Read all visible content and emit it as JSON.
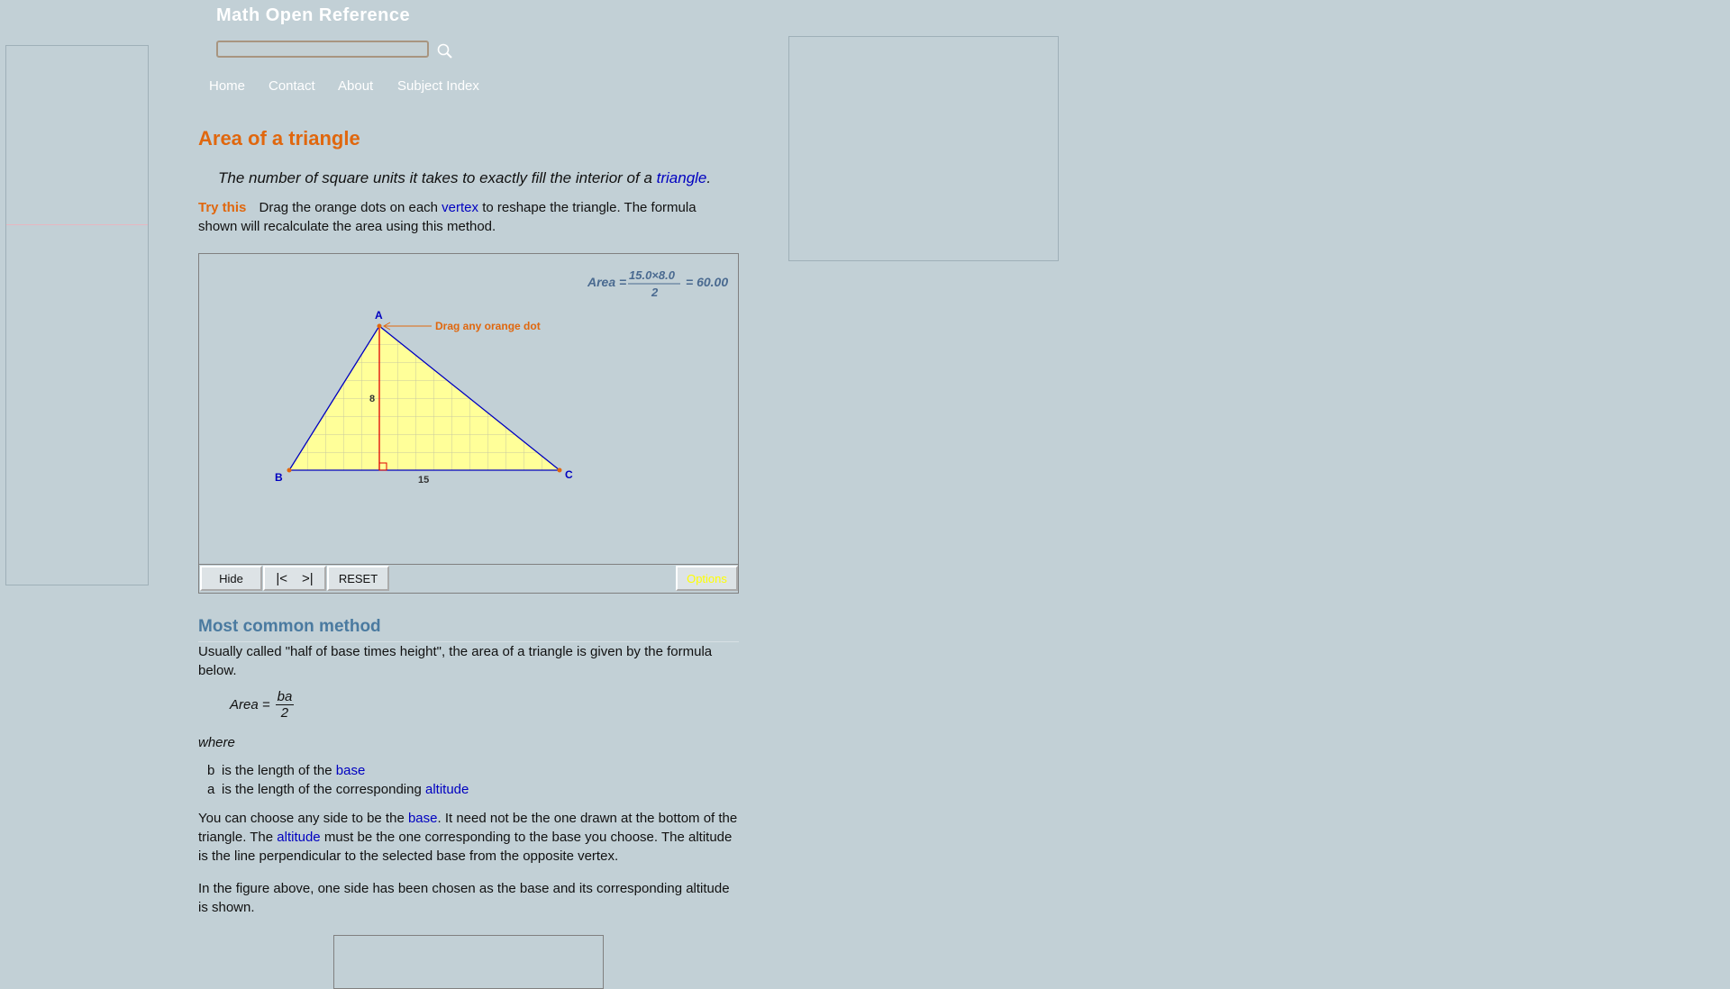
{
  "site": {
    "title": "Math Open Reference"
  },
  "search": {
    "placeholder": ""
  },
  "nav": [
    "Home",
    "Contact",
    "About",
    "Subject Index"
  ],
  "page": {
    "title": "Area of a triangle",
    "definition_prefix": "The number of square units it takes to exactly fill the interior of a ",
    "definition_link": "triangle",
    "definition_suffix": ".",
    "try_label": "Try this",
    "try_text_1": "Drag the orange dots on each ",
    "try_link": "vertex",
    "try_text_2": " to reshape the triangle. The formula shown will recalculate the area using this method."
  },
  "applet": {
    "formula_label": "Area =",
    "formula_numerator": "15.0×8.0",
    "formula_denominator": "2",
    "formula_result": "= 60.00",
    "drag_hint": "Drag any orange dot",
    "vertex_a": "A",
    "vertex_b": "B",
    "vertex_c": "C",
    "base_label": "15",
    "height_label": "8",
    "buttons": {
      "hide": "Hide",
      "first": "|<",
      "last": ">|",
      "reset": "RESET",
      "options": "Options"
    },
    "colors": {
      "fill": "#ffff99",
      "edge": "#0000c0",
      "altitude": "#e00000",
      "accent": "#e0670e",
      "options_text": "#ffff00"
    }
  },
  "section": {
    "heading": "Most common method",
    "intro": "Usually called \"half of base times height\", the area of a triangle is given by the formula below.",
    "formula_label": "Area =",
    "formula_num": "ba",
    "formula_den": "2",
    "where": "where",
    "defs": [
      {
        "var": "b",
        "text": "is the length of the ",
        "link": "base"
      },
      {
        "var": "a",
        "text": "is the length of the corresponding ",
        "link": "altitude"
      }
    ],
    "p1_a": "You can choose any side to be the ",
    "p1_link1": "base",
    "p1_b": ". It need not be the one drawn at the bottom of the triangle. The ",
    "p1_link2": "altitude",
    "p1_c": " must be the one corresponding to the base you choose. The altitude is the line perpendicular to the selected base from the opposite vertex.",
    "p2": "In the figure above, one side has been chosen as the base and its corresponding altitude is shown."
  }
}
